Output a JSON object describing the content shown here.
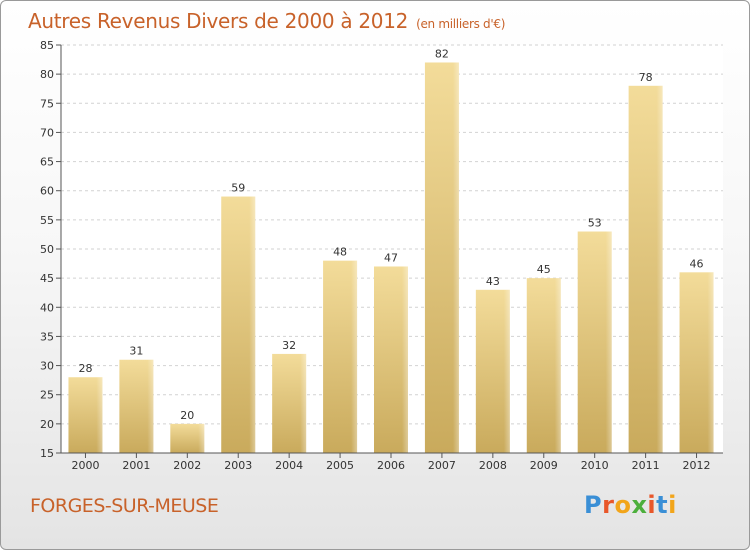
{
  "header": {
    "title": "Autres Revenus Divers de 2000 à 2012",
    "unit": "(en milliers d'€)"
  },
  "footer": {
    "place": "FORGES-SUR-MEUSE",
    "logo": [
      "P",
      "r",
      "o",
      "x",
      "i",
      "t",
      "i"
    ],
    "logo_colors": [
      "#3a8fd6",
      "#e8572a",
      "#f2a51a",
      "#4caf3c",
      "#e8572a",
      "#3a8fd6",
      "#f2a51a"
    ]
  },
  "colors": {
    "title": "#c8622a",
    "bar_light": "#f3dc9a",
    "bar_dark": "#c9aa5c"
  },
  "chart_data": {
    "type": "bar",
    "categories": [
      "2000",
      "2001",
      "2002",
      "2003",
      "2004",
      "2005",
      "2006",
      "2007",
      "2008",
      "2009",
      "2010",
      "2011",
      "2012"
    ],
    "values": [
      28,
      31,
      20,
      59,
      32,
      48,
      47,
      82,
      43,
      45,
      53,
      78,
      46
    ],
    "title": "Autres Revenus Divers de 2000 à 2012",
    "subtitle": "(en milliers d'€)",
    "xlabel": "",
    "ylabel": "",
    "ylim": [
      15,
      85
    ],
    "yticks": [
      15,
      20,
      25,
      30,
      35,
      40,
      45,
      50,
      55,
      60,
      65,
      70,
      75,
      80,
      85
    ],
    "grid": "horizontal dashed",
    "data_labels": true
  }
}
